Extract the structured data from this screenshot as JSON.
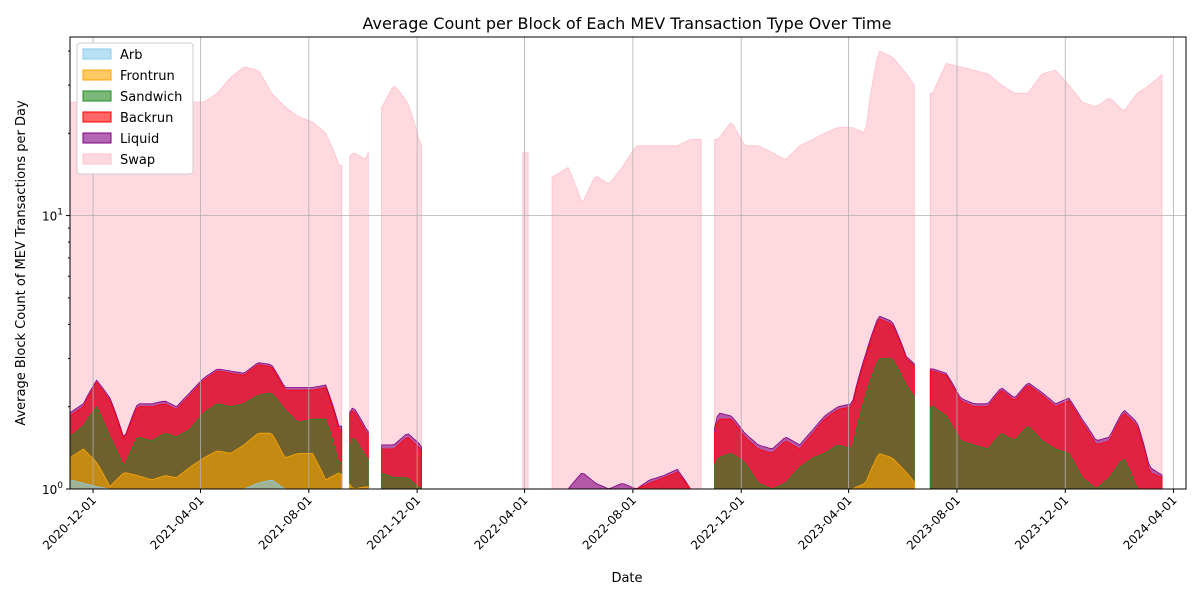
{
  "chart_data": {
    "type": "area",
    "title": "Average Count per Block of Each MEV Transaction Type Over Time",
    "xlabel": "Date",
    "ylabel": "Average Block Count of MEV Transactions per Day",
    "yscale": "log",
    "ylim": [
      1,
      45
    ],
    "xlim": [
      "2020-11-05",
      "2024-04-15"
    ],
    "grid": true,
    "legend_position": "top-left",
    "x_ticks": [
      "2020-12-01",
      "2021-04-01",
      "2021-08-01",
      "2021-12-01",
      "2022-04-01",
      "2022-08-01",
      "2022-12-01",
      "2023-04-01",
      "2023-08-01",
      "2023-12-01",
      "2024-04-01"
    ],
    "y_ticks": [
      {
        "value": 1,
        "base": "10",
        "exp": "0"
      },
      {
        "value": 10,
        "base": "10",
        "exp": "1"
      }
    ],
    "series_order_note": "values are cumulative stacked totals (avg count per block)",
    "dates": [
      "2020-11-05",
      "2020-11-20",
      "2020-12-05",
      "2020-12-20",
      "2021-01-05",
      "2021-01-20",
      "2021-02-05",
      "2021-02-20",
      "2021-03-05",
      "2021-03-20",
      "2021-04-05",
      "2021-04-20",
      "2021-05-05",
      "2021-05-20",
      "2021-06-05",
      "2021-06-20",
      "2021-07-05",
      "2021-07-20",
      "2021-08-05",
      "2021-08-20",
      "2021-09-05",
      "2021-09-20",
      "2021-10-05",
      "2021-10-20",
      "2021-11-05",
      "2021-11-20",
      "2021-12-05",
      "2021-12-20",
      "2022-01-05",
      "2022-01-20",
      "2022-02-05",
      "2022-02-20",
      "2022-03-05",
      "2022-03-20",
      "2022-04-05",
      "2022-04-20",
      "2022-05-05",
      "2022-05-20",
      "2022-06-05",
      "2022-06-20",
      "2022-07-05",
      "2022-07-20",
      "2022-08-05",
      "2022-08-20",
      "2022-09-05",
      "2022-09-20",
      "2022-10-05",
      "2022-10-20",
      "2022-11-05",
      "2022-11-20",
      "2022-12-05",
      "2022-12-20",
      "2023-01-05",
      "2023-01-20",
      "2023-02-05",
      "2023-02-20",
      "2023-03-05",
      "2023-03-20",
      "2023-04-05",
      "2023-04-20",
      "2023-05-05",
      "2023-05-20",
      "2023-06-05",
      "2023-06-20",
      "2023-07-05",
      "2023-07-20",
      "2023-08-05",
      "2023-08-20",
      "2023-09-05",
      "2023-09-20",
      "2023-10-05",
      "2023-10-20",
      "2023-11-05",
      "2023-11-20",
      "2023-12-05",
      "2023-12-20",
      "2024-01-05",
      "2024-01-20",
      "2024-02-05",
      "2024-02-20",
      "2024-03-05",
      "2024-03-20"
    ],
    "series": [
      {
        "name": "Arb",
        "color": "#87ceeb",
        "values": [
          1.08,
          1.05,
          1.02,
          1.0,
          1.0,
          1.0,
          1.0,
          1.0,
          1.0,
          1.0,
          1.0,
          1.0,
          1.0,
          1.0,
          1.05,
          1.08,
          1.0,
          1.0,
          1.0,
          1.0,
          1.0,
          1.0,
          1.0,
          1.0,
          1.0,
          1.0,
          1.0,
          1.0,
          1.0,
          1.0,
          1.0,
          1.0,
          1.0,
          1.0,
          1.0,
          1.0,
          1.0,
          1.0,
          1.0,
          1.0,
          1.0,
          1.0,
          1.0,
          1.0,
          1.0,
          1.0,
          1.0,
          1.0,
          1.0,
          1.0,
          1.0,
          1.0,
          1.0,
          1.0,
          1.0,
          1.0,
          1.0,
          1.0,
          1.0,
          1.0,
          1.0,
          1.0,
          1.0,
          1.0,
          1.0,
          1.0,
          1.0,
          1.0,
          1.0,
          1.0,
          1.0,
          1.0,
          1.0,
          1.0,
          1.0,
          1.0,
          1.0,
          1.0,
          1.0,
          1.0,
          1.0,
          1.0
        ]
      },
      {
        "name": "Frontrun",
        "color": "#ffa500",
        "values": [
          1.3,
          1.4,
          1.25,
          1.02,
          1.15,
          1.12,
          1.08,
          1.12,
          1.1,
          1.2,
          1.3,
          1.38,
          1.35,
          1.45,
          1.6,
          1.6,
          1.3,
          1.35,
          1.35,
          1.08,
          1.15,
          1.0,
          1.02,
          1.0,
          1.0,
          1.0,
          1.0,
          1.0,
          1.0,
          1.0,
          1.0,
          1.0,
          1.0,
          1.0,
          1.0,
          1.0,
          1.0,
          1.0,
          1.0,
          1.0,
          1.0,
          1.0,
          1.0,
          1.0,
          1.0,
          1.0,
          1.0,
          1.0,
          1.0,
          1.0,
          1.0,
          1.0,
          1.0,
          1.0,
          1.0,
          1.0,
          1.0,
          1.0,
          1.0,
          1.05,
          1.35,
          1.3,
          1.15,
          1.0,
          1.0,
          1.0,
          1.0,
          1.0,
          1.0,
          1.0,
          1.0,
          1.0,
          1.0,
          1.0,
          1.0,
          1.0,
          1.0,
          1.0,
          1.0,
          1.0,
          1.0,
          1.0
        ]
      },
      {
        "name": "Sandwich",
        "color": "#228b22",
        "values": [
          1.55,
          1.7,
          2.0,
          1.55,
          1.2,
          1.55,
          1.5,
          1.6,
          1.55,
          1.65,
          1.9,
          2.05,
          2.0,
          2.05,
          2.2,
          2.25,
          1.95,
          1.75,
          1.8,
          1.8,
          1.2,
          1.55,
          1.3,
          1.15,
          1.1,
          1.1,
          1.0,
          1.0,
          1.0,
          1.0,
          1.0,
          1.0,
          1.0,
          1.0,
          1.0,
          1.0,
          1.0,
          1.0,
          1.0,
          1.0,
          1.0,
          1.0,
          1.0,
          1.0,
          1.0,
          1.0,
          1.0,
          1.0,
          1.3,
          1.35,
          1.25,
          1.05,
          1.0,
          1.05,
          1.2,
          1.3,
          1.35,
          1.45,
          1.4,
          2.2,
          3.0,
          3.0,
          2.4,
          2.0,
          2.0,
          1.85,
          1.5,
          1.45,
          1.4,
          1.6,
          1.5,
          1.7,
          1.5,
          1.4,
          1.35,
          1.1,
          1.0,
          1.1,
          1.3,
          1.0,
          1.0,
          1.0
        ]
      },
      {
        "name": "Backrun",
        "color": "#ff0000",
        "values": [
          1.85,
          2.0,
          2.45,
          2.1,
          1.5,
          2.0,
          2.0,
          2.05,
          1.95,
          2.2,
          2.5,
          2.7,
          2.65,
          2.6,
          2.85,
          2.8,
          2.3,
          2.3,
          2.3,
          2.35,
          1.6,
          1.95,
          1.6,
          1.4,
          1.4,
          1.55,
          1.4,
          1.0,
          1.0,
          1.0,
          1.0,
          1.0,
          1.0,
          1.0,
          1.0,
          1.0,
          1.0,
          1.0,
          1.0,
          1.0,
          1.0,
          1.0,
          1.0,
          1.05,
          1.1,
          1.15,
          1.0,
          1.0,
          1.8,
          1.8,
          1.55,
          1.4,
          1.35,
          1.5,
          1.4,
          1.6,
          1.8,
          1.95,
          2.0,
          3.0,
          4.2,
          4.0,
          3.0,
          2.7,
          2.7,
          2.6,
          2.1,
          2.0,
          2.0,
          2.3,
          2.1,
          2.4,
          2.2,
          2.0,
          2.1,
          1.75,
          1.45,
          1.5,
          1.9,
          1.7,
          1.15,
          1.1
        ]
      },
      {
        "name": "Liquid",
        "color": "#800080",
        "values": [
          1.9,
          2.05,
          2.5,
          2.15,
          1.52,
          2.05,
          2.05,
          2.1,
          2.0,
          2.25,
          2.55,
          2.75,
          2.7,
          2.65,
          2.9,
          2.85,
          2.35,
          2.35,
          2.35,
          2.4,
          1.65,
          2.0,
          1.65,
          1.45,
          1.45,
          1.6,
          1.45,
          1.05,
          1.0,
          1.0,
          1.0,
          1.0,
          1.0,
          1.0,
          1.0,
          1.0,
          1.0,
          1.0,
          1.15,
          1.05,
          1.0,
          1.05,
          1.0,
          1.08,
          1.12,
          1.18,
          1.0,
          1.0,
          1.9,
          1.85,
          1.6,
          1.45,
          1.4,
          1.55,
          1.45,
          1.65,
          1.85,
          2.0,
          2.05,
          3.1,
          4.3,
          4.1,
          3.05,
          2.75,
          2.75,
          2.65,
          2.15,
          2.05,
          2.05,
          2.35,
          2.15,
          2.45,
          2.25,
          2.05,
          2.15,
          1.8,
          1.5,
          1.55,
          1.95,
          1.75,
          1.2,
          1.12
        ]
      },
      {
        "name": "Swap",
        "color": "#ffc0cb",
        "values": [
          26,
          26,
          25,
          24,
          23,
          24,
          25,
          25,
          26,
          26,
          26,
          28,
          32,
          35,
          34,
          28,
          25,
          23,
          22,
          20,
          15,
          17,
          16,
          24,
          30,
          26,
          18,
          17,
          14,
          13,
          12,
          13,
          17,
          17,
          17,
          13,
          14,
          15,
          11,
          14,
          13,
          15,
          18,
          18,
          18,
          18,
          19,
          19,
          19,
          22,
          18,
          18,
          17,
          16,
          18,
          19,
          20,
          21,
          21,
          20,
          40,
          38,
          33,
          28,
          28,
          36,
          35,
          34,
          33,
          30,
          28,
          28,
          33,
          34,
          30,
          26,
          25,
          27,
          24,
          28,
          30,
          33
        ]
      }
    ],
    "gaps": [
      [
        "2021-09-08",
        "2021-09-15"
      ],
      [
        "2021-10-08",
        "2021-10-20"
      ],
      [
        "2021-12-08",
        "2022-03-28"
      ],
      [
        "2022-04-08",
        "2022-04-30"
      ],
      [
        "2022-10-18",
        "2022-10-30"
      ],
      [
        "2023-06-15",
        "2023-07-01"
      ]
    ]
  }
}
